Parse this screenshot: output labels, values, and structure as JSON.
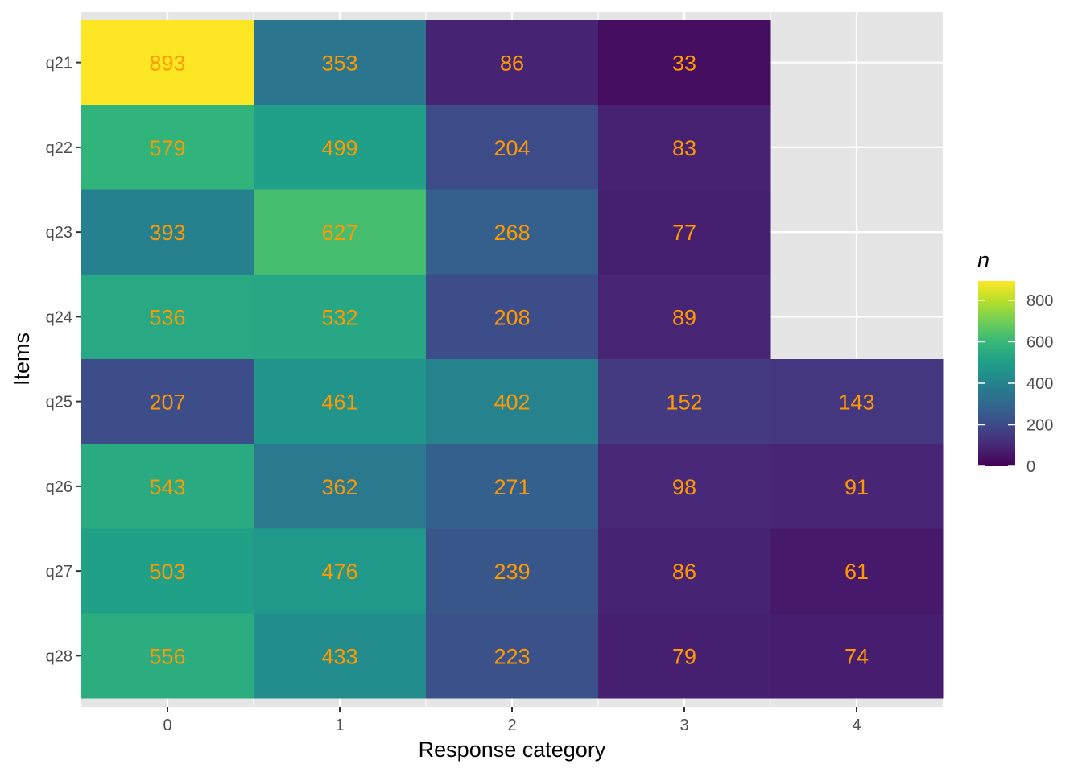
{
  "chart_data": {
    "type": "heatmap",
    "xlabel": "Response category",
    "ylabel": "Items",
    "x_categories": [
      "0",
      "1",
      "2",
      "3",
      "4"
    ],
    "y_categories": [
      "q21",
      "q22",
      "q23",
      "q24",
      "q25",
      "q26",
      "q27",
      "q28"
    ],
    "values": [
      [
        893,
        353,
        86,
        33,
        null
      ],
      [
        579,
        499,
        204,
        83,
        null
      ],
      [
        393,
        627,
        268,
        77,
        null
      ],
      [
        536,
        532,
        208,
        89,
        null
      ],
      [
        207,
        461,
        402,
        152,
        143
      ],
      [
        543,
        362,
        271,
        98,
        91
      ],
      [
        503,
        476,
        239,
        86,
        61
      ],
      [
        556,
        433,
        223,
        79,
        74
      ]
    ],
    "legend": {
      "title": "n",
      "ticks": [
        0,
        200,
        400,
        600,
        800
      ],
      "range": [
        0,
        893
      ],
      "palette": "viridis"
    },
    "colors": {
      "panel_bg": "#e5e5e5",
      "grid": "#ffffff",
      "label": "#ff9900"
    },
    "grid": true,
    "legend_position": "right"
  }
}
